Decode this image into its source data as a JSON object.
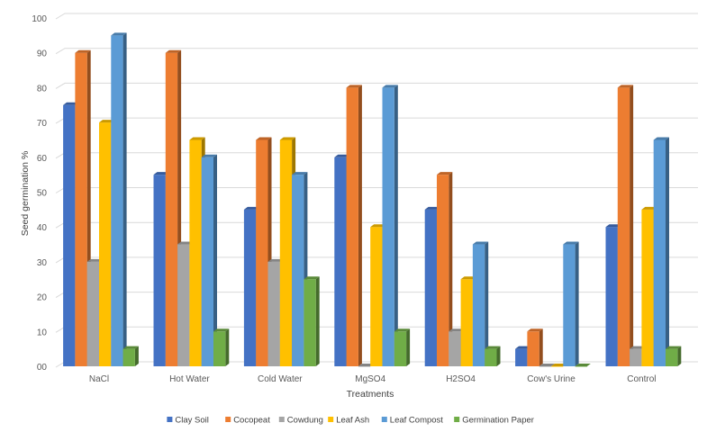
{
  "chart_data": {
    "type": "bar",
    "title": "",
    "xlabel": "Treatments",
    "ylabel": "Seed germination %",
    "ylim": [
      0,
      100
    ],
    "yticks": [
      "00",
      "10",
      "20",
      "30",
      "40",
      "50",
      "60",
      "70",
      "80",
      "90",
      "100"
    ],
    "ytick_values": [
      0,
      10,
      20,
      30,
      40,
      50,
      60,
      70,
      80,
      90,
      100
    ],
    "grid": true,
    "style": "3d-clustered-column",
    "legend_position": "bottom",
    "categories": [
      "NaCl",
      "Hot Water",
      "Cold Water",
      "MgSO4",
      "H2SO4",
      "Cow's Urine",
      "Control"
    ],
    "series": [
      {
        "name": "Clay Soil",
        "color": "#4472C4",
        "values": [
          75,
          55,
          45,
          60,
          45,
          5,
          40
        ]
      },
      {
        "name": "Cocopeat",
        "color": "#ED7D31",
        "values": [
          90,
          90,
          65,
          80,
          55,
          10,
          80
        ]
      },
      {
        "name": "Cowdung",
        "color": "#A5A5A5",
        "values": [
          30,
          35,
          30,
          0,
          10,
          0,
          5
        ]
      },
      {
        "name": "Leaf Ash",
        "color": "#FFC000",
        "values": [
          70,
          65,
          65,
          40,
          25,
          0,
          45
        ]
      },
      {
        "name": "Leaf Compost",
        "color": "#5B9BD5",
        "values": [
          95,
          60,
          55,
          80,
          35,
          35,
          65
        ]
      },
      {
        "name": "Germination Paper",
        "color": "#70AD47",
        "values": [
          5,
          10,
          25,
          10,
          5,
          0,
          5
        ]
      }
    ]
  }
}
